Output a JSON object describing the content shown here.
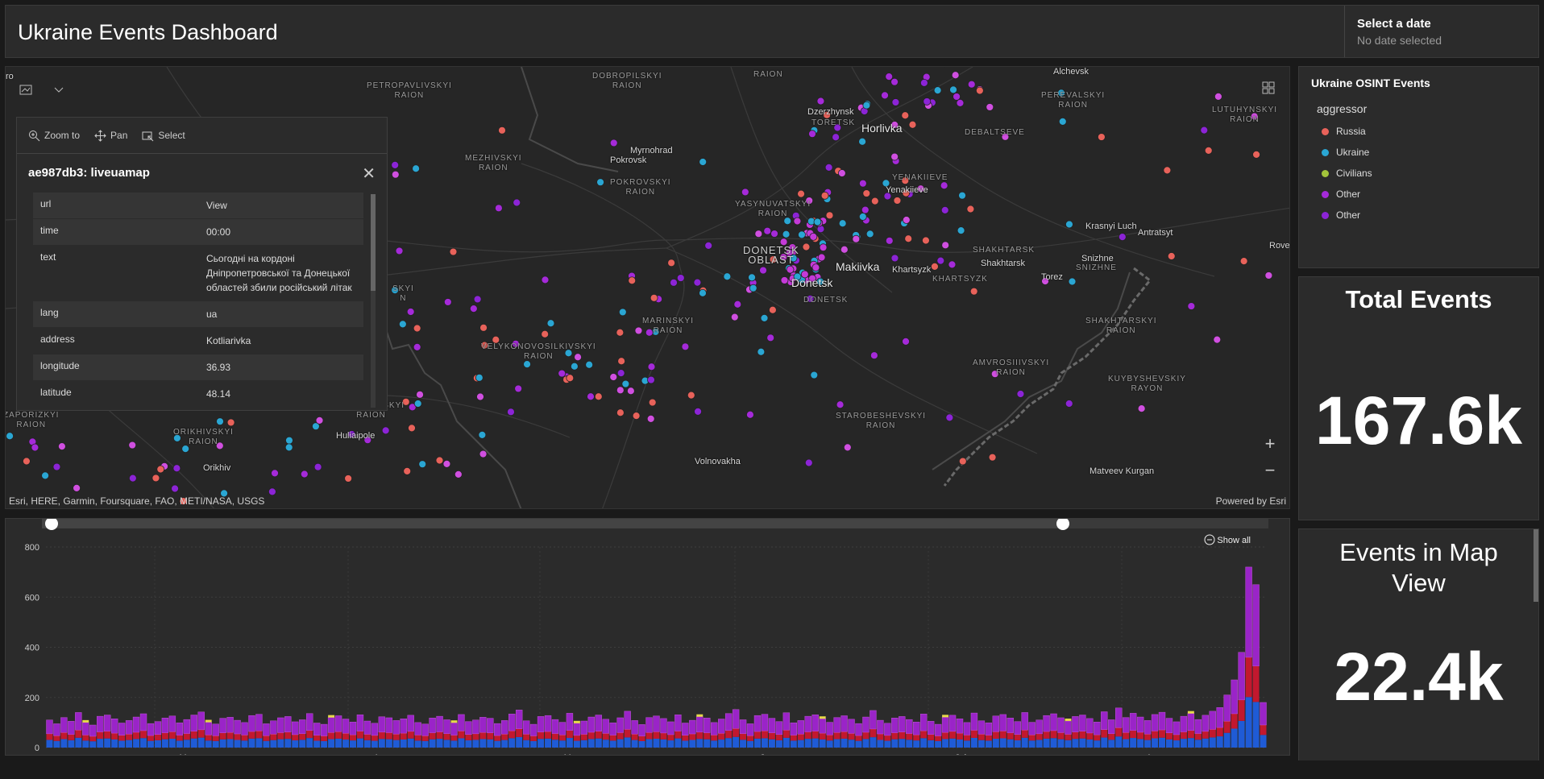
{
  "header": {
    "title": "Ukraine Events Dashboard",
    "date_label": "Select a date",
    "date_value": "No date selected"
  },
  "map": {
    "attribution": "Esri, HERE, Garmin, Foursquare, FAO, METI/NASA, USGS",
    "powered": "Powered by Esri",
    "places": [
      {
        "t": "PETROPAVLIVSKYI\nRAION",
        "c": "region"
      },
      {
        "t": "DOBROPILSKYI\nRAION",
        "c": "region"
      },
      {
        "t": "RAION",
        "c": "region"
      },
      {
        "t": "Alchevsk",
        "c": "town"
      },
      {
        "t": "PEREVALSKYI\nRAION",
        "c": "region"
      },
      {
        "t": "LUTUHYNSKYI\nRAION",
        "c": "region"
      },
      {
        "t": "Dzerzhynsk",
        "c": "town"
      },
      {
        "t": "TORETSK",
        "c": "region"
      },
      {
        "t": "Horlivka",
        "c": "city"
      },
      {
        "t": "DEBALTSEVE",
        "c": "region"
      },
      {
        "t": "MEZHIVSKYI\nRAION",
        "c": "region"
      },
      {
        "t": "Myrnohrad",
        "c": "town"
      },
      {
        "t": "Pokrovsk",
        "c": "town"
      },
      {
        "t": "POKROVSKYI\nRAION",
        "c": "region"
      },
      {
        "t": "YENAKIIEVE",
        "c": "region"
      },
      {
        "t": "Yenakiieve",
        "c": "town"
      },
      {
        "t": "YASYNUVATSKYI\nRAION",
        "c": "region"
      },
      {
        "t": "Krasnyi Luch",
        "c": "town"
      },
      {
        "t": "Antratsyt",
        "c": "town"
      },
      {
        "t": "Rovenky",
        "c": "town"
      },
      {
        "t": "DONETSK\nOBLAST",
        "c": "region big"
      },
      {
        "t": "Makiivka",
        "c": "city"
      },
      {
        "t": "Donetsk",
        "c": "city"
      },
      {
        "t": "DONETSK",
        "c": "region"
      },
      {
        "t": "SHAKHTARSK",
        "c": "region"
      },
      {
        "t": "Shakhtarsk",
        "c": "town"
      },
      {
        "t": "Snizhne",
        "c": "town"
      },
      {
        "t": "SNIZHNE",
        "c": "region"
      },
      {
        "t": "Khartsyzk",
        "c": "town"
      },
      {
        "t": "KHARTSYZK",
        "c": "region"
      },
      {
        "t": "Torez",
        "c": "town"
      },
      {
        "t": "MARINSKYI\nRAION",
        "c": "region"
      },
      {
        "t": "SHAKHTARSKYI\nRAION",
        "c": "region"
      },
      {
        "t": "VELYKONOVOSILKIVSKYI\nRAION",
        "c": "region"
      },
      {
        "t": "AMVROSIIIVSKYI\nRAION",
        "c": "region"
      },
      {
        "t": "KUYBYSHEVSKIY\nRAYON",
        "c": "region"
      },
      {
        "t": "STAROBESHEVSKYI\nRAION",
        "c": "region"
      },
      {
        "t": "ZAPORIZKYI\nRAION",
        "c": "region"
      },
      {
        "t": "HULIAIPILSKYI\nRAION",
        "c": "region"
      },
      {
        "t": "Huliaipole",
        "c": "town"
      },
      {
        "t": "ORIKHIVSKYI\nRAION",
        "c": "region"
      },
      {
        "t": "Orikhiv",
        "c": "town"
      },
      {
        "t": "Volnovakha",
        "c": "town"
      },
      {
        "t": "Matveev Kurgan",
        "c": "town"
      },
      {
        "t": "SKYI\nN",
        "c": "region"
      },
      {
        "t": "ro",
        "c": "town"
      }
    ]
  },
  "popup": {
    "tools": [
      {
        "icon": "zoom-in-icon",
        "label": "Zoom to"
      },
      {
        "icon": "pan-icon",
        "label": "Pan"
      },
      {
        "icon": "select-icon",
        "label": "Select"
      }
    ],
    "title": "ae987db3: liveuamap",
    "rows": [
      {
        "k": "url",
        "v": "View"
      },
      {
        "k": "time",
        "v": "00:00"
      },
      {
        "k": "text",
        "v": "Сьогодні на кордоні Дніпропетровської та Донецької областей збили російський літак"
      },
      {
        "k": "lang",
        "v": "ua"
      },
      {
        "k": "address",
        "v": "Kotliarivka"
      },
      {
        "k": "longitude",
        "v": "36.93"
      },
      {
        "k": "latitude",
        "v": "48.14"
      }
    ]
  },
  "legend": {
    "title": "Ukraine OSINT Events",
    "field": "aggressor",
    "items": [
      {
        "label": "Russia",
        "color": "#e8625a"
      },
      {
        "label": "Ukraine",
        "color": "#2aa6d3"
      },
      {
        "label": "Civilians",
        "color": "#a3c43b"
      },
      {
        "label": "Other",
        "color": "#a52ad9"
      },
      {
        "label": "Other",
        "color": "#8c24d6"
      }
    ]
  },
  "kpi_total": {
    "title": "Total Events",
    "value": "167.6k"
  },
  "kpi_view": {
    "title": "Events in Map View",
    "value": "22.4k"
  },
  "chart": {
    "show_all": "Show all",
    "yticks": [
      "800",
      "600",
      "400",
      "200",
      "0"
    ],
    "months": [
      "Mar",
      "Apr",
      "May",
      "Jun",
      "Jul",
      "Aug"
    ]
  },
  "chart_data": {
    "type": "bar",
    "stacked": true,
    "xlabel": "",
    "ylabel": "",
    "ylim": [
      0,
      800
    ],
    "categories": [
      "Mar",
      "Apr",
      "May",
      "Jun",
      "Jul",
      "Aug"
    ],
    "series": [
      {
        "name": "Ukraine",
        "color": "#1f5bd6"
      },
      {
        "name": "Russia",
        "color": "#c2182e"
      },
      {
        "name": "Other",
        "color": "#9a24c8"
      },
      {
        "name": "Civilians",
        "color": "#e6d94a"
      }
    ],
    "note_values": "Daily stacked counts mostly 60-150 per day; spikes near end of Aug at ~720 and ~640",
    "daily_total_estimates": [
      110,
      95,
      120,
      105,
      140,
      100,
      90,
      125,
      130,
      115,
      98,
      108,
      122,
      135,
      96,
      104,
      118,
      126,
      99,
      112,
      130,
      142,
      101,
      94,
      117,
      121,
      109,
      100,
      128,
      133,
      95,
      107,
      119,
      124,
      103,
      111,
      136,
      98,
      93,
      120,
      127,
      114,
      102,
      131,
      106,
      97,
      123,
      119,
      108,
      115,
      129,
      100,
      94,
      118,
      125,
      111,
      99,
      132,
      104,
      110,
      121,
      117,
      96,
      108,
      134,
      150,
      107,
      93,
      124,
      128,
      112,
      101,
      137,
      97,
      106,
      122,
      130,
      113,
      99,
      119,
      145,
      108,
      92,
      120,
      126,
      116,
      103,
      131,
      98,
      109,
      123,
      118,
      100,
      114,
      136,
      152,
      111,
      95,
      128,
      133,
      117,
      104,
      139,
      99,
      108,
      125,
      131,
      115,
      101,
      120,
      127,
      113,
      96,
      122,
      148,
      109,
      97,
      118,
      124,
      112,
      102,
      134,
      105,
      93,
      121,
      129,
      115,
      100,
      138,
      107,
      99,
      126,
      132,
      118,
      104,
      140,
      101,
      110,
      128,
      135,
      119,
      106,
      124,
      130,
      116,
      102,
      143,
      111,
      158,
      120,
      137,
      122,
      108,
      132,
      141,
      117,
      103,
      125,
      136,
      112,
      129,
      145,
      160,
      210,
      270,
      380,
      720,
      650,
      180
    ]
  }
}
